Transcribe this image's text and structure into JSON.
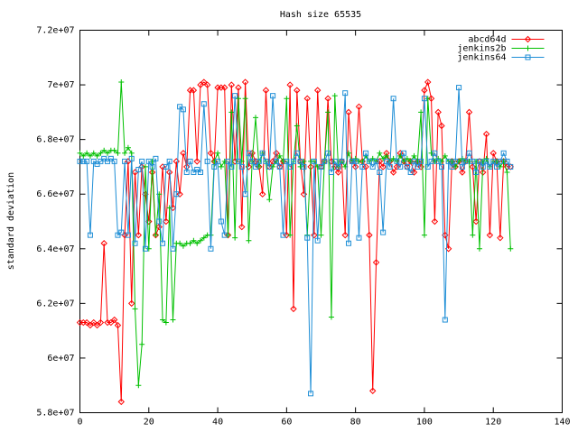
{
  "chart_data": {
    "type": "line",
    "title": "Hash size 65535",
    "ylabel": "standard deviation",
    "legend": "top-right",
    "x": [
      0,
      1,
      2,
      3,
      4,
      5,
      6,
      7,
      8,
      9,
      10,
      11,
      12,
      13,
      14,
      15,
      16,
      17,
      18,
      19,
      20,
      21,
      22,
      23,
      24,
      25,
      26,
      27,
      28,
      29,
      30,
      31,
      32,
      33,
      34,
      35,
      36,
      37,
      38,
      39,
      40,
      41,
      42,
      43,
      44,
      45,
      46,
      47,
      48,
      49,
      50,
      51,
      52,
      53,
      54,
      55,
      56,
      57,
      58,
      59,
      60,
      61,
      62,
      63,
      64,
      65,
      66,
      67,
      68,
      69,
      70,
      71,
      72,
      73,
      74,
      75,
      76,
      77,
      78,
      79,
      80,
      81,
      82,
      83,
      84,
      85,
      86,
      87,
      88,
      89,
      90,
      91,
      92,
      93,
      94,
      95,
      96,
      97,
      98,
      99,
      100,
      101,
      102,
      103,
      104,
      105,
      106,
      107,
      108,
      109,
      110,
      111,
      112,
      113,
      114,
      115,
      116,
      117,
      118,
      119,
      120,
      121,
      122,
      123,
      124,
      125
    ],
    "xlim": [
      0,
      140
    ],
    "xticks": [
      0,
      20,
      40,
      60,
      80,
      100,
      120,
      140
    ],
    "ylim": [
      58000000,
      72000000
    ],
    "yticks": [
      {
        "value": 58000000,
        "label": "5.8e+07"
      },
      {
        "value": 60000000,
        "label": "6e+07"
      },
      {
        "value": 62000000,
        "label": "6.2e+07"
      },
      {
        "value": 64000000,
        "label": "6.4e+07"
      },
      {
        "value": 66000000,
        "label": "6.6e+07"
      },
      {
        "value": 68000000,
        "label": "6.8e+07"
      },
      {
        "value": 70000000,
        "label": "7e+07"
      },
      {
        "value": 72000000,
        "label": "7.2e+07"
      }
    ],
    "series": [
      {
        "name": "abcd64d",
        "color": "#ff0000",
        "marker": "diamond",
        "values": [
          61300000.0,
          61300000.0,
          61300000.0,
          61200000.0,
          61300000.0,
          61200000.0,
          61300000.0,
          64200000.0,
          61300000.0,
          61300000.0,
          61400000.0,
          61200000.0,
          58400000.0,
          64500000.0,
          67200000.0,
          62000000.0,
          66800000.0,
          64500000.0,
          67000000.0,
          66000000.0,
          65000000.0,
          66800000.0,
          64500000.0,
          64800000.0,
          67000000.0,
          65000000.0,
          66800000.0,
          65500000.0,
          67200000.0,
          66000000.0,
          67500000.0,
          67000000.0,
          69800000.0,
          69800000.0,
          67200000.0,
          70000000.0,
          70100000.0,
          70000000.0,
          67500000.0,
          67200000.0,
          69900000.0,
          69900000.0,
          69900000.0,
          64500000.0,
          70000000.0,
          67200000.0,
          69900000.0,
          64800000.0,
          70100000.0,
          67000000.0,
          67500000.0,
          67200000.0,
          67000000.0,
          66000000.0,
          69800000.0,
          67000000.0,
          67200000.0,
          67500000.0,
          67000000.0,
          67200000.0,
          64500000.0,
          70000000.0,
          61800000.0,
          69800000.0,
          67200000.0,
          66000000.0,
          69500000.0,
          67000000.0,
          64500000.0,
          69800000.0,
          67000000.0,
          67200000.0,
          69500000.0,
          67200000.0,
          67000000.0,
          66800000.0,
          67200000.0,
          64500000.0,
          69000000.0,
          67200000.0,
          67000000.0,
          69200000.0,
          67200000.0,
          67000000.0,
          64500000.0,
          58800000.0,
          63500000.0,
          67200000.0,
          67000000.0,
          67500000.0,
          67200000.0,
          66800000.0,
          67000000.0,
          67500000.0,
          67200000.0,
          67000000.0,
          67200000.0,
          66800000.0,
          67200000.0,
          67000000.0,
          69800000.0,
          70100000.0,
          69500000.0,
          65000000.0,
          69000000.0,
          68500000.0,
          64500000.0,
          64000000.0,
          67200000.0,
          67000000.0,
          67200000.0,
          66800000.0,
          67200000.0,
          69000000.0,
          67000000.0,
          65000000.0,
          67200000.0,
          66800000.0,
          68200000.0,
          64500000.0,
          67500000.0,
          67200000.0,
          64400000.0,
          67200000.0,
          67000000.0,
          67000000.0
        ]
      },
      {
        "name": "jenkins2b",
        "color": "#00c000",
        "marker": "plus",
        "values": [
          67500000.0,
          67400000.0,
          67500000.0,
          67400000.0,
          67500000.0,
          67400000.0,
          67500000.0,
          67600000.0,
          67500000.0,
          67600000.0,
          67600000.0,
          67500000.0,
          70100000.0,
          67500000.0,
          67700000.0,
          67500000.0,
          61800000.0,
          59000000.0,
          60500000.0,
          67000000.0,
          64000000.0,
          67200000.0,
          64500000.0,
          66000000.0,
          61400000.0,
          61300000.0,
          65500000.0,
          61400000.0,
          64200000.0,
          64200000.0,
          64100000.0,
          64200000.0,
          64200000.0,
          64300000.0,
          64200000.0,
          64300000.0,
          64400000.0,
          64500000.0,
          64500000.0,
          67200000.0,
          67500000.0,
          67000000.0,
          67200000.0,
          64500000.0,
          69000000.0,
          64400000.0,
          69500000.0,
          67200000.0,
          69500000.0,
          64300000.0,
          67200000.0,
          68800000.0,
          67000000.0,
          67500000.0,
          67200000.0,
          65800000.0,
          67000000.0,
          67200000.0,
          67400000.0,
          67200000.0,
          69500000.0,
          64500000.0,
          67200000.0,
          68500000.0,
          67000000.0,
          67200000.0,
          64500000.0,
          67200000.0,
          67200000.0,
          67000000.0,
          64500000.0,
          67200000.0,
          69000000.0,
          61500000.0,
          69600000.0,
          67000000.0,
          67200000.0,
          67000000.0,
          67500000.0,
          67200000.0,
          67300000.0,
          67200000.0,
          67200000.0,
          67400000.0,
          67200000.0,
          67300000.0,
          67200000.0,
          67500000.0,
          67300000.0,
          67400000.0,
          67200000.0,
          67300000.0,
          67200000.0,
          67400000.0,
          67200000.0,
          67300000.0,
          67200000.0,
          67400000.0,
          67200000.0,
          69000000.0,
          64500000.0,
          69500000.0,
          67500000.0,
          67200000.0,
          67300000.0,
          67200000.0,
          67400000.0,
          67200000.0,
          67200000.0,
          67000000.0,
          67200000.0,
          67300000.0,
          67200000.0,
          67200000.0,
          64500000.0,
          67200000.0,
          64000000.0,
          67200000.0,
          67300000.0,
          67000000.0,
          67200000.0,
          67200000.0,
          67000000.0,
          67200000.0,
          66800000.0,
          64000000.0
        ]
      },
      {
        "name": "jenkins64",
        "color": "#1e8ed6",
        "marker": "square",
        "values": [
          67200000.0,
          67200000.0,
          67200000.0,
          64500000.0,
          67200000.0,
          67100000.0,
          67200000.0,
          67300000.0,
          67200000.0,
          67300000.0,
          67200000.0,
          64500000.0,
          64600000.0,
          67200000.0,
          64500000.0,
          67300000.0,
          64200000.0,
          66900000.0,
          67200000.0,
          64000000.0,
          67200000.0,
          67000000.0,
          67300000.0,
          65000000.0,
          64200000.0,
          67000000.0,
          67200000.0,
          64000000.0,
          66000000.0,
          69200000.0,
          69100000.0,
          66800000.0,
          67200000.0,
          66800000.0,
          66900000.0,
          66800000.0,
          69300000.0,
          67200000.0,
          64000000.0,
          67000000.0,
          67200000.0,
          65000000.0,
          64500000.0,
          67200000.0,
          67000000.0,
          69600000.0,
          67200000.0,
          67000000.0,
          66000000.0,
          67500000.0,
          67200000.0,
          67000000.0,
          67200000.0,
          67500000.0,
          67200000.0,
          67000000.0,
          69600000.0,
          67200000.0,
          67000000.0,
          64500000.0,
          67200000.0,
          67000000.0,
          67200000.0,
          67500000.0,
          67200000.0,
          67000000.0,
          64400000.0,
          58700000.0,
          67200000.0,
          64300000.0,
          67000000.0,
          67200000.0,
          67500000.0,
          66800000.0,
          67200000.0,
          67000000.0,
          67200000.0,
          69700000.0,
          64200000.0,
          67200000.0,
          67200000.0,
          64400000.0,
          67000000.0,
          67500000.0,
          67200000.0,
          67000000.0,
          67200000.0,
          66800000.0,
          64600000.0,
          67200000.0,
          67000000.0,
          69500000.0,
          67200000.0,
          67000000.0,
          67500000.0,
          67000000.0,
          66800000.0,
          67200000.0,
          67000000.0,
          67200000.0,
          69500000.0,
          67000000.0,
          67200000.0,
          67500000.0,
          67200000.0,
          67000000.0,
          61400000.0,
          67200000.0,
          67000000.0,
          67200000.0,
          69900000.0,
          67000000.0,
          67200000.0,
          67500000.0,
          67200000.0,
          66800000.0,
          67200000.0,
          67000000.0,
          67200000.0,
          67000000.0,
          67200000.0,
          67000000.0,
          67200000.0,
          67500000.0,
          67200000.0,
          67000000.0
        ]
      }
    ]
  }
}
